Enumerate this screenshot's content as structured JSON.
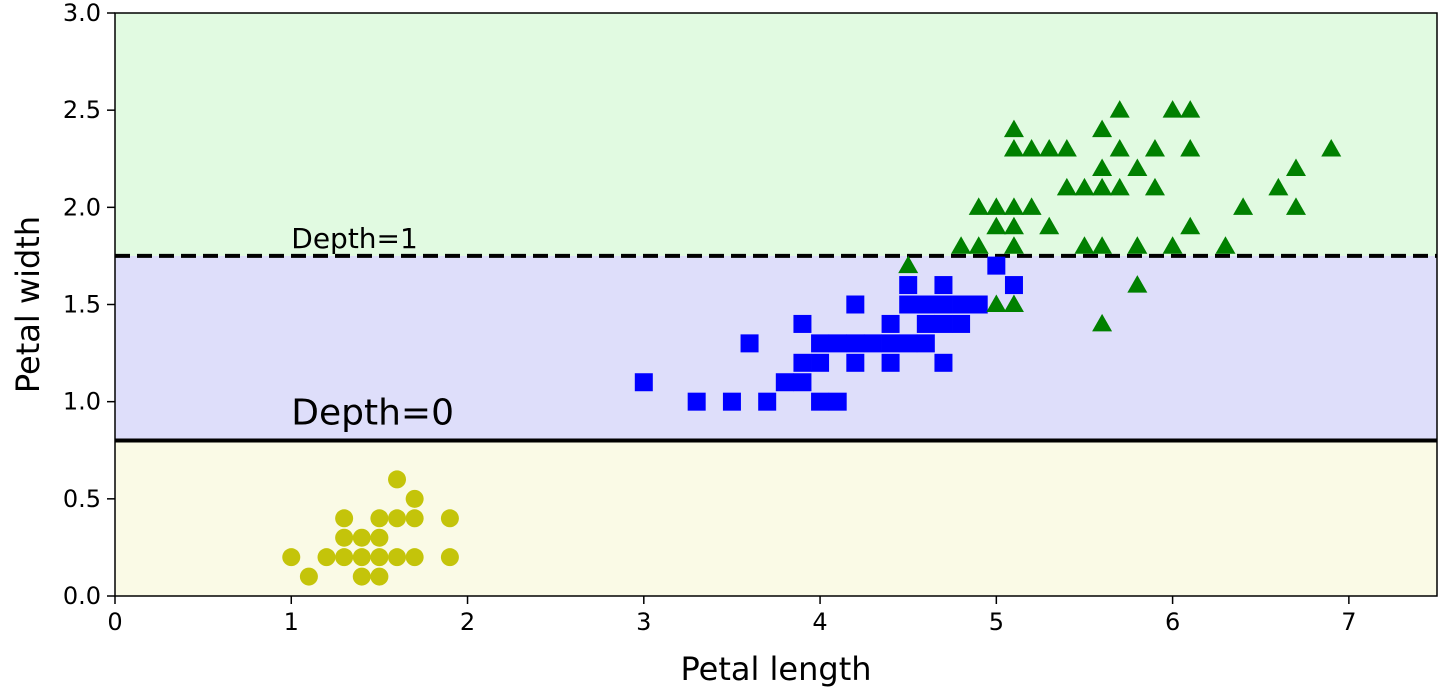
{
  "chart_data": {
    "type": "scatter",
    "xlabel": "Petal length",
    "ylabel": "Petal width",
    "xlim": [
      0,
      7.5
    ],
    "ylim": [
      0,
      3.0
    ],
    "x_ticks": [
      0,
      1,
      2,
      3,
      4,
      5,
      6,
      7
    ],
    "y_ticks": [
      0.0,
      0.5,
      1.0,
      1.5,
      2.0,
      2.5,
      3.0
    ],
    "x_tick_labels": [
      "0",
      "1",
      "2",
      "3",
      "4",
      "5",
      "6",
      "7"
    ],
    "y_tick_labels": [
      "0.0",
      "0.5",
      "1.0",
      "1.5",
      "2.0",
      "2.5",
      "3.0"
    ],
    "grid": false,
    "regions": [
      {
        "y_from": 0.0,
        "y_to": 0.8,
        "color": "#fafae6"
      },
      {
        "y_from": 0.8,
        "y_to": 1.75,
        "color": "#dedefa"
      },
      {
        "y_from": 1.75,
        "y_to": 3.0,
        "color": "#e1fae1"
      }
    ],
    "boundaries": [
      {
        "y": 0.8,
        "style": "solid",
        "label": "Depth=0"
      },
      {
        "y": 1.75,
        "style": "dashed",
        "label": "Depth=1"
      }
    ],
    "series": [
      {
        "marker": "circle",
        "color": "#c4c40a",
        "points": [
          [
            1.0,
            0.2
          ],
          [
            1.1,
            0.1
          ],
          [
            1.2,
            0.2
          ],
          [
            1.3,
            0.2
          ],
          [
            1.3,
            0.3
          ],
          [
            1.3,
            0.4
          ],
          [
            1.4,
            0.1
          ],
          [
            1.4,
            0.2
          ],
          [
            1.4,
            0.3
          ],
          [
            1.5,
            0.1
          ],
          [
            1.5,
            0.2
          ],
          [
            1.5,
            0.3
          ],
          [
            1.5,
            0.4
          ],
          [
            1.6,
            0.2
          ],
          [
            1.6,
            0.4
          ],
          [
            1.6,
            0.6
          ],
          [
            1.7,
            0.2
          ],
          [
            1.7,
            0.4
          ],
          [
            1.7,
            0.5
          ],
          [
            1.9,
            0.2
          ],
          [
            1.9,
            0.4
          ]
        ]
      },
      {
        "marker": "square",
        "color": "#0000ff",
        "points": [
          [
            3.0,
            1.1
          ],
          [
            3.3,
            1.0
          ],
          [
            3.5,
            1.0
          ],
          [
            3.6,
            1.3
          ],
          [
            3.7,
            1.0
          ],
          [
            3.8,
            1.1
          ],
          [
            3.9,
            1.1
          ],
          [
            3.9,
            1.2
          ],
          [
            3.9,
            1.4
          ],
          [
            4.0,
            1.0
          ],
          [
            4.0,
            1.2
          ],
          [
            4.0,
            1.3
          ],
          [
            4.1,
            1.0
          ],
          [
            4.1,
            1.3
          ],
          [
            4.2,
            1.2
          ],
          [
            4.2,
            1.3
          ],
          [
            4.2,
            1.5
          ],
          [
            4.3,
            1.3
          ],
          [
            4.4,
            1.2
          ],
          [
            4.4,
            1.3
          ],
          [
            4.4,
            1.4
          ],
          [
            4.5,
            1.3
          ],
          [
            4.5,
            1.5
          ],
          [
            4.5,
            1.6
          ],
          [
            4.6,
            1.3
          ],
          [
            4.6,
            1.4
          ],
          [
            4.6,
            1.5
          ],
          [
            4.7,
            1.2
          ],
          [
            4.7,
            1.4
          ],
          [
            4.7,
            1.5
          ],
          [
            4.7,
            1.6
          ],
          [
            4.8,
            1.4
          ],
          [
            4.8,
            1.5
          ],
          [
            4.9,
            1.5
          ],
          [
            5.0,
            1.7
          ],
          [
            5.1,
            1.6
          ]
        ]
      },
      {
        "marker": "triangle",
        "color": "#008000",
        "points": [
          [
            4.5,
            1.7
          ],
          [
            4.8,
            1.8
          ],
          [
            4.9,
            1.8
          ],
          [
            4.9,
            2.0
          ],
          [
            5.0,
            1.5
          ],
          [
            5.0,
            1.9
          ],
          [
            5.0,
            2.0
          ],
          [
            5.1,
            1.5
          ],
          [
            5.1,
            1.8
          ],
          [
            5.1,
            1.9
          ],
          [
            5.1,
            2.0
          ],
          [
            5.1,
            2.3
          ],
          [
            5.1,
            2.4
          ],
          [
            5.2,
            2.0
          ],
          [
            5.2,
            2.3
          ],
          [
            5.3,
            1.9
          ],
          [
            5.3,
            2.3
          ],
          [
            5.4,
            2.1
          ],
          [
            5.4,
            2.3
          ],
          [
            5.5,
            1.8
          ],
          [
            5.5,
            2.1
          ],
          [
            5.6,
            1.4
          ],
          [
            5.6,
            1.8
          ],
          [
            5.6,
            2.1
          ],
          [
            5.6,
            2.2
          ],
          [
            5.6,
            2.4
          ],
          [
            5.7,
            2.1
          ],
          [
            5.7,
            2.3
          ],
          [
            5.7,
            2.5
          ],
          [
            5.8,
            1.6
          ],
          [
            5.8,
            1.8
          ],
          [
            5.8,
            2.2
          ],
          [
            5.9,
            2.1
          ],
          [
            5.9,
            2.3
          ],
          [
            6.0,
            1.8
          ],
          [
            6.0,
            2.5
          ],
          [
            6.1,
            1.9
          ],
          [
            6.1,
            2.3
          ],
          [
            6.1,
            2.5
          ],
          [
            6.3,
            1.8
          ],
          [
            6.4,
            2.0
          ],
          [
            6.6,
            2.1
          ],
          [
            6.7,
            2.0
          ],
          [
            6.7,
            2.2
          ],
          [
            6.9,
            2.3
          ]
        ]
      }
    ]
  }
}
